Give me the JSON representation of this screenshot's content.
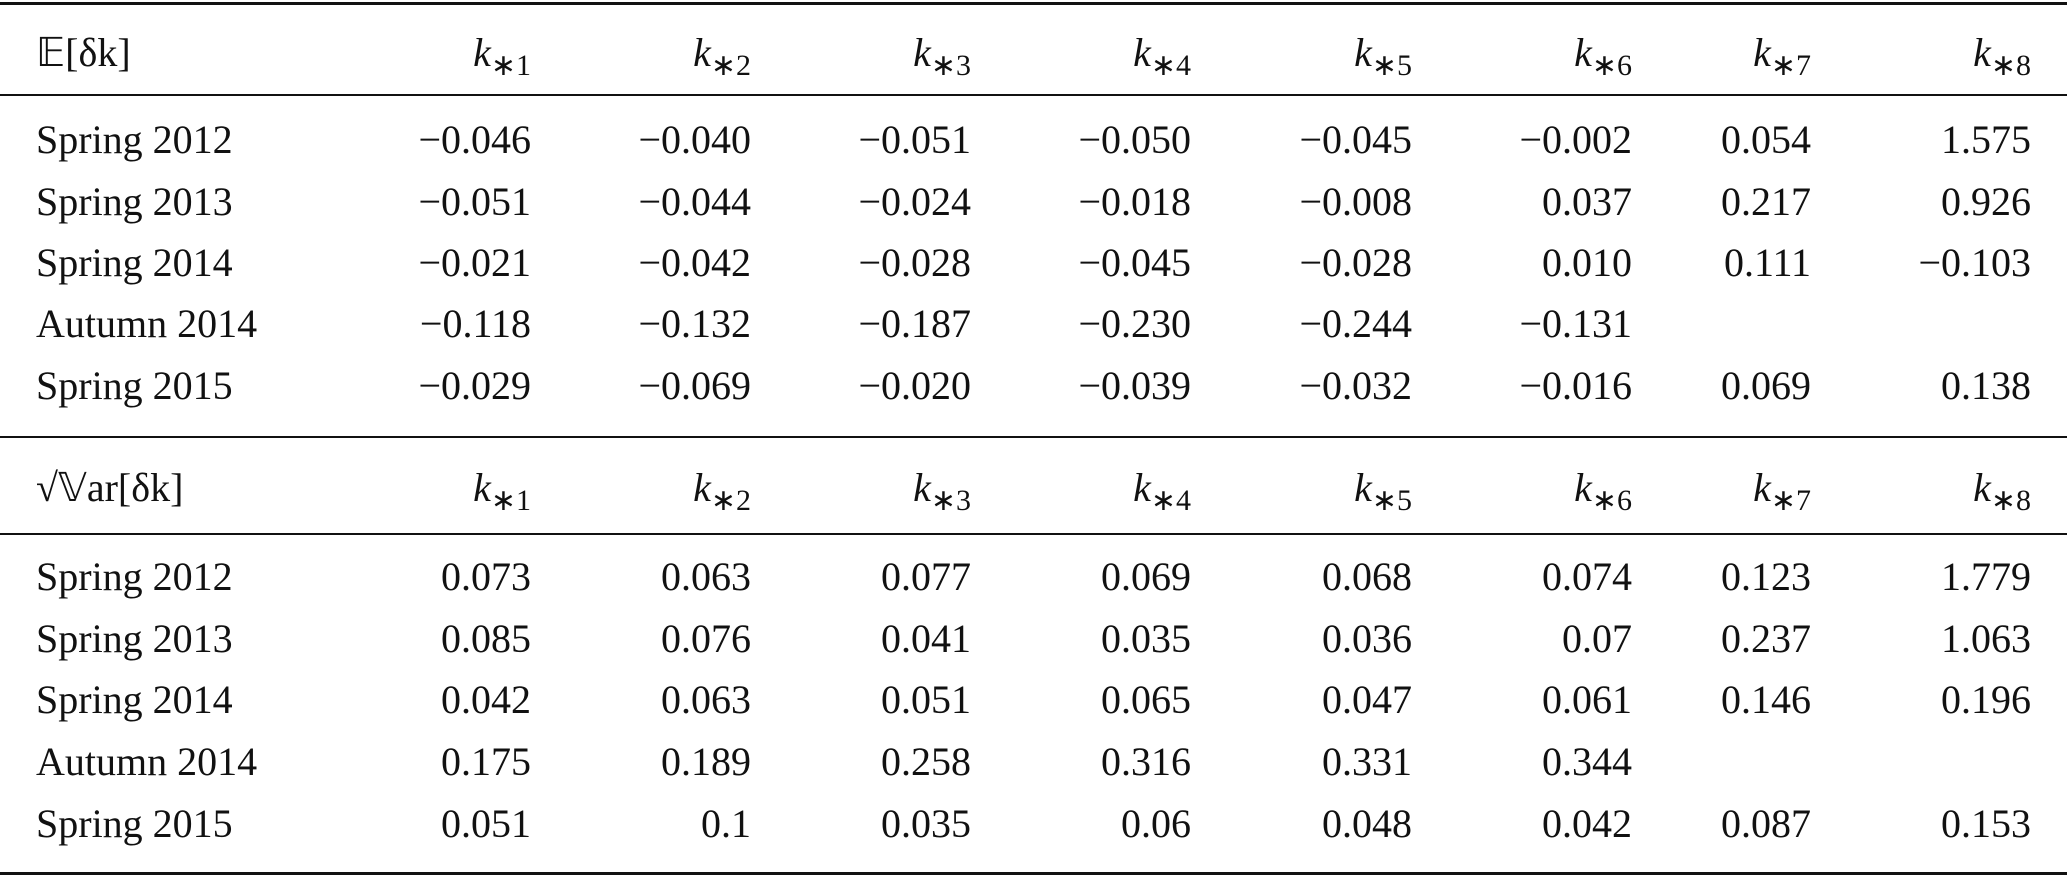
{
  "sections": [
    {
      "header": {
        "label": "𝔼[δk]",
        "columns": [
          {
            "base": "k",
            "sub": "∗1"
          },
          {
            "base": "k",
            "sub": "∗2"
          },
          {
            "base": "k",
            "sub": "∗3"
          },
          {
            "base": "k",
            "sub": "∗4"
          },
          {
            "base": "k",
            "sub": "∗5"
          },
          {
            "base": "k",
            "sub": "∗6"
          },
          {
            "base": "k",
            "sub": "∗7"
          },
          {
            "base": "k",
            "sub": "∗8"
          }
        ]
      },
      "rows": [
        {
          "label": "Spring 2012",
          "cells": [
            "−0.046",
            "−0.040",
            "−0.051",
            "−0.050",
            "−0.045",
            "−0.002",
            "0.054",
            "1.575"
          ]
        },
        {
          "label": "Spring 2013",
          "cells": [
            "−0.051",
            "−0.044",
            "−0.024",
            "−0.018",
            "−0.008",
            "0.037",
            "0.217",
            "0.926"
          ]
        },
        {
          "label": "Spring 2014",
          "cells": [
            "−0.021",
            "−0.042",
            "−0.028",
            "−0.045",
            "−0.028",
            "0.010",
            "0.111",
            "−0.103"
          ]
        },
        {
          "label": "Autumn 2014",
          "cells": [
            "−0.118",
            "−0.132",
            "−0.187",
            "−0.230",
            "−0.244",
            "−0.131",
            null,
            null
          ]
        },
        {
          "label": "Spring 2015",
          "cells": [
            "−0.029",
            "−0.069",
            "−0.020",
            "−0.039",
            "−0.032",
            "−0.016",
            "0.069",
            "0.138"
          ]
        }
      ]
    },
    {
      "header": {
        "label": "√𝕍ar[δk]",
        "columns": [
          {
            "base": "k",
            "sub": "∗1"
          },
          {
            "base": "k",
            "sub": "∗2"
          },
          {
            "base": "k",
            "sub": "∗3"
          },
          {
            "base": "k",
            "sub": "∗4"
          },
          {
            "base": "k",
            "sub": "∗5"
          },
          {
            "base": "k",
            "sub": "∗6"
          },
          {
            "base": "k",
            "sub": "∗7"
          },
          {
            "base": "k",
            "sub": "∗8"
          }
        ]
      },
      "rows": [
        {
          "label": "Spring 2012",
          "cells": [
            "0.073",
            "0.063",
            "0.077",
            "0.069",
            "0.068",
            "0.074",
            "0.123",
            "1.779"
          ]
        },
        {
          "label": "Spring 2013",
          "cells": [
            "0.085",
            "0.076",
            "0.041",
            "0.035",
            "0.036",
            "0.07",
            "0.237",
            "1.063"
          ]
        },
        {
          "label": "Spring 2014",
          "cells": [
            "0.042",
            "0.063",
            "0.051",
            "0.065",
            "0.047",
            "0.061",
            "0.146",
            "0.196"
          ]
        },
        {
          "label": "Autumn 2014",
          "cells": [
            "0.175",
            "0.189",
            "0.258",
            "0.316",
            "0.331",
            "0.344",
            null,
            null
          ]
        },
        {
          "label": "Spring 2015",
          "cells": [
            "0.051",
            "0.1",
            "0.035",
            "0.06",
            "0.048",
            "0.042",
            "0.087",
            "0.153"
          ]
        }
      ]
    }
  ]
}
